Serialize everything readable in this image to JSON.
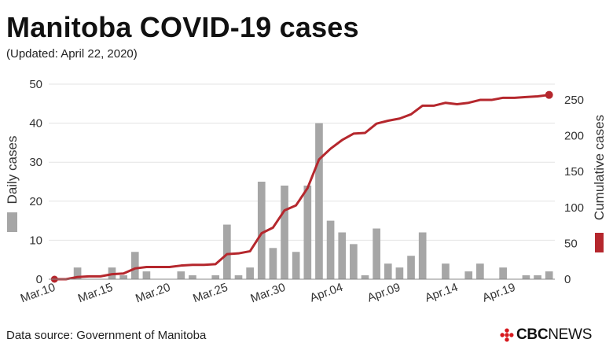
{
  "header": {
    "title": "Manitoba COVID-19 cases",
    "subtitle": "(Updated: April 22, 2020)"
  },
  "footer": {
    "source": "Data source: Government of Manitoba",
    "logo_cbc": "CBC",
    "logo_news": "NEWS",
    "logo_icon": "cbc-gem-icon"
  },
  "colors": {
    "bars": "#a6a6a6",
    "line": "#b5272d",
    "grid": "#e3e3e3"
  },
  "chart_data": {
    "type": "bar",
    "xlabel": "",
    "x_tick_labels": [
      "Mar.10",
      "Mar.15",
      "Mar.20",
      "Mar.25",
      "Mar.30",
      "Apr.04",
      "Apr.09",
      "Apr.14",
      "Apr.19"
    ],
    "categories": [
      "Mar.10",
      "Mar.11",
      "Mar.12",
      "Mar.13",
      "Mar.14",
      "Mar.15",
      "Mar.16",
      "Mar.17",
      "Mar.18",
      "Mar.19",
      "Mar.20",
      "Mar.21",
      "Mar.22",
      "Mar.23",
      "Mar.24",
      "Mar.25",
      "Mar.26",
      "Mar.27",
      "Mar.28",
      "Mar.29",
      "Mar.30",
      "Mar.31",
      "Apr.01",
      "Apr.02",
      "Apr.03",
      "Apr.04",
      "Apr.05",
      "Apr.06",
      "Apr.07",
      "Apr.08",
      "Apr.09",
      "Apr.10",
      "Apr.11",
      "Apr.12",
      "Apr.13",
      "Apr.14",
      "Apr.15",
      "Apr.16",
      "Apr.17",
      "Apr.18",
      "Apr.19",
      "Apr.20",
      "Apr.21",
      "Apr.22"
    ],
    "series": [
      {
        "name": "Daily cases",
        "axis": "left",
        "values": [
          0,
          0,
          3,
          0,
          0,
          3,
          1,
          7,
          2,
          0,
          0,
          2,
          1,
          0,
          1,
          14,
          1,
          3,
          25,
          8,
          24,
          7,
          24,
          40,
          15,
          12,
          9,
          1,
          13,
          4,
          3,
          6,
          12,
          0,
          4,
          0,
          2,
          4,
          0,
          3,
          0,
          1,
          1,
          2
        ]
      },
      {
        "name": "Cumulative cases",
        "axis": "right",
        "values": [
          0,
          0,
          3,
          4,
          4,
          7,
          8,
          15,
          17,
          17,
          17,
          19,
          20,
          20,
          21,
          35,
          36,
          39,
          64,
          72,
          96,
          103,
          127,
          167,
          182,
          194,
          203,
          204,
          217,
          221,
          224,
          230,
          242,
          242,
          246,
          244,
          246,
          250,
          250,
          253,
          253,
          254,
          255,
          257
        ]
      }
    ],
    "y_left": {
      "label": "Daily cases",
      "ticks": [
        0,
        10,
        20,
        30,
        40,
        50
      ],
      "ylim": [
        0,
        50
      ]
    },
    "y_right": {
      "label": "Cumulative cases",
      "ticks": [
        0,
        50,
        100,
        150,
        200,
        250
      ],
      "ylim": [
        0,
        272
      ]
    },
    "grid": true,
    "legend": "axis-swatches"
  }
}
